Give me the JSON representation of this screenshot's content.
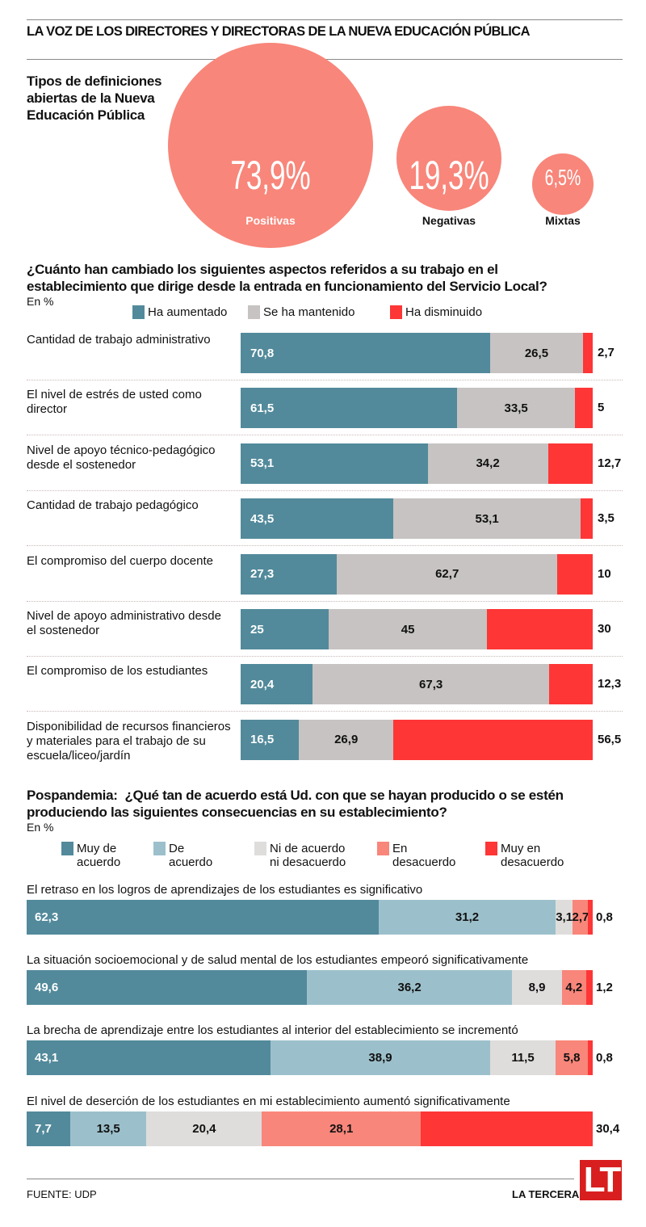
{
  "header": {
    "title": "LA VOZ DE LOS DIRECTORES Y DIRECTORAS DE LA NUEVA EDUCACIÓN PÚBLICA"
  },
  "colors": {
    "bubble": "#f8867a",
    "aumentado": "#528a9b",
    "mantenido": "#c6c3c2",
    "disminuido": "#fe3636",
    "muy_de_acuerdo": "#528a9b",
    "de_acuerdo": "#9cc0cb",
    "ni": "#dedddc",
    "en_desacuerdo": "#f8867a",
    "muy_en_desacuerdo": "#fe3636",
    "logo": "#d81e1e"
  },
  "footer": {
    "source": "FUENTE: UDP",
    "brand": "LA TERCERA",
    "logo_text": "LT"
  },
  "chart_data": [
    {
      "type": "bubble",
      "title": "Tipos de definiciones abiertas de la Nueva Educación Pública",
      "unit": "%",
      "categories": [
        "Positivas",
        "Negativas",
        "Mixtas"
      ],
      "values": [
        73.9,
        19.3,
        6.5
      ],
      "value_labels": [
        "73,9%",
        "19,3%",
        "6,5%"
      ]
    },
    {
      "type": "bar",
      "stacked": true,
      "orientation": "horizontal",
      "title": "¿Cuánto han cambiado los siguientes aspectos referidos a su trabajo en el establecimiento que dirige desde la entrada en funcionamiento del Servicio Local?",
      "subtitle": "En %",
      "legend": [
        "Ha aumentado",
        "Se ha mantenido",
        "Ha disminuido"
      ],
      "legend_position": "top",
      "categories": [
        "Cantidad de trabajo administrativo",
        "El nivel de estrés de usted como director",
        "Nivel de apoyo técnico-pedagógico desde el sostenedor",
        "Cantidad de trabajo pedagógico",
        "El compromiso del cuerpo docente",
        "Nivel de apoyo administrativo desde el sostenedor",
        "El compromiso de los estudiantes",
        "Disponibilidad de recursos financieros y materiales para el trabajo de su escuela/liceo/jardín"
      ],
      "series": [
        {
          "name": "Ha aumentado",
          "values": [
            70.8,
            61.5,
            53.1,
            43.5,
            27.3,
            25,
            20.4,
            16.5
          ],
          "labels": [
            "70,8",
            "61,5",
            "53,1",
            "43,5",
            "27,3",
            "25",
            "20,4",
            "16,5"
          ]
        },
        {
          "name": "Se ha mantenido",
          "values": [
            26.5,
            33.5,
            34.2,
            53.1,
            62.7,
            45,
            67.3,
            26.9
          ],
          "labels": [
            "26,5",
            "33,5",
            "34,2",
            "53,1",
            "62,7",
            "45",
            "67,3",
            "26,9"
          ]
        },
        {
          "name": "Ha disminuido",
          "values": [
            2.7,
            5,
            12.7,
            3.5,
            10,
            30,
            12.3,
            56.5
          ],
          "labels": [
            "2,7",
            "5",
            "12,7",
            "3,5",
            "10",
            "30",
            "12,3",
            "56,5"
          ]
        }
      ],
      "xlim": [
        0,
        100
      ]
    },
    {
      "type": "bar",
      "stacked": true,
      "orientation": "horizontal",
      "title_prefix": "Pospandemia:",
      "title": "¿Qué tan de acuerdo está Ud. con que se hayan producido o se estén produciendo las siguientes consecuencias en su establecimiento?",
      "subtitle": "En %",
      "legend": [
        "Muy de acuerdo",
        "De acuerdo",
        "Ni de acuerdo ni desacuerdo",
        "En desacuerdo",
        "Muy en desacuerdo"
      ],
      "legend_lines": [
        [
          "Muy de",
          "acuerdo"
        ],
        [
          "De",
          "acuerdo"
        ],
        [
          "Ni de acuerdo",
          "ni desacuerdo"
        ],
        [
          "En",
          "desacuerdo"
        ],
        [
          "Muy en",
          "desacuerdo"
        ]
      ],
      "legend_position": "top",
      "categories": [
        "El retraso en los logros de aprendizajes de los estudiantes es significativo",
        "La situación socioemocional y de salud mental de los estudiantes empeoró significativamente",
        "La brecha de aprendizaje entre los estudiantes al interior del establecimiento se incrementó",
        "El nivel de deserción de los estudiantes en mi establecimiento aumentó significativamente"
      ],
      "series": [
        {
          "name": "Muy de acuerdo",
          "values": [
            62.3,
            49.6,
            43.1,
            7.7
          ],
          "labels": [
            "62,3",
            "49,6",
            "43,1",
            "7,7"
          ]
        },
        {
          "name": "De acuerdo",
          "values": [
            31.2,
            36.2,
            38.9,
            13.5
          ],
          "labels": [
            "31,2",
            "36,2",
            "38,9",
            "13,5"
          ]
        },
        {
          "name": "Ni de acuerdo ni desacuerdo",
          "values": [
            3.1,
            8.9,
            11.5,
            20.4
          ],
          "labels": [
            "3,1",
            "8,9",
            "11,5",
            "20,4"
          ]
        },
        {
          "name": "En desacuerdo",
          "values": [
            2.7,
            4.2,
            5.8,
            28.1
          ],
          "labels": [
            "2,7",
            "4,2",
            "5,8",
            "28,1"
          ]
        },
        {
          "name": "Muy en desacuerdo",
          "values": [
            0.8,
            1.2,
            0.8,
            30.4
          ],
          "labels": [
            "0,8",
            "1,2",
            "0,8",
            "30,4"
          ]
        }
      ],
      "xlim": [
        0,
        100
      ]
    }
  ]
}
